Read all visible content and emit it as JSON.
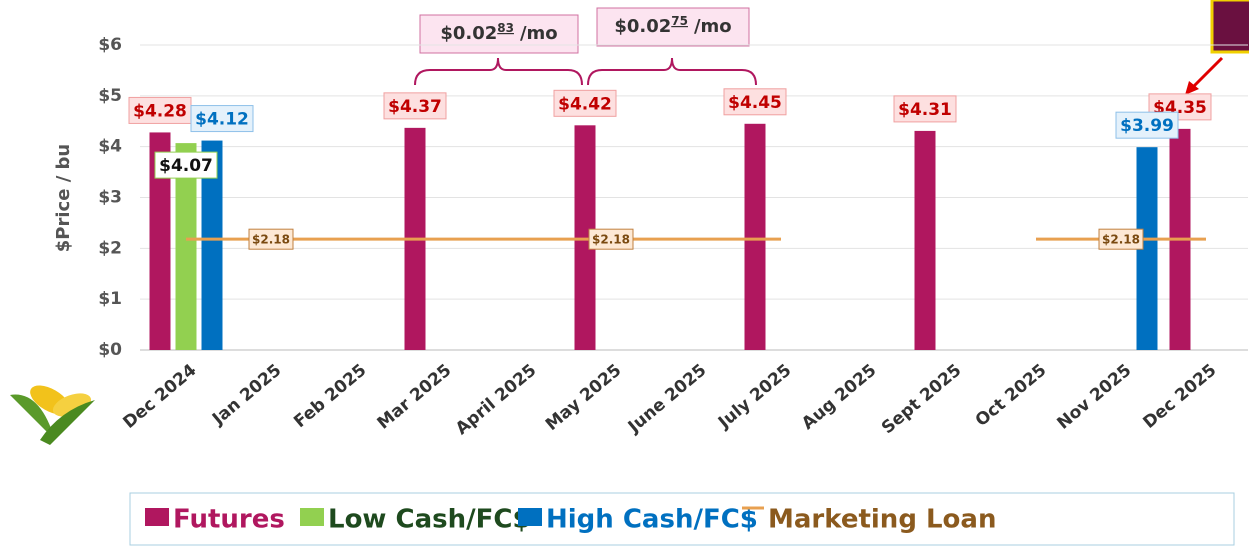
{
  "chart_data": {
    "type": "bar",
    "y_label": "$Price / bu",
    "categories": [
      "Dec 2024",
      "Jan 2025",
      "Feb 2025",
      "Mar 2025",
      "April 2025",
      "May 2025",
      "June 2025",
      "July 2025",
      "Aug 2025",
      "Sept 2025",
      "Oct 2025",
      "Nov 2025",
      "Dec 2025"
    ],
    "series": [
      {
        "name": "Futures",
        "color": "#b0175f",
        "values": [
          4.28,
          null,
          null,
          4.37,
          null,
          4.42,
          null,
          4.45,
          null,
          4.31,
          null,
          null,
          4.35
        ],
        "value_labels": [
          "$4.28",
          null,
          null,
          "$4.37",
          null,
          "$4.42",
          null,
          "$4.45",
          null,
          "$4.31",
          null,
          null,
          "$4.35"
        ]
      },
      {
        "name": "Low Cash/FC$",
        "color": "#92d050",
        "values": [
          4.07,
          null,
          null,
          null,
          null,
          null,
          null,
          null,
          null,
          null,
          null,
          null,
          null
        ],
        "value_labels": [
          "$4.07",
          null,
          null,
          null,
          null,
          null,
          null,
          null,
          null,
          null,
          null,
          null,
          null
        ]
      },
      {
        "name": "High Cash/FC$",
        "color": "#0070c0",
        "values": [
          4.12,
          null,
          null,
          null,
          null,
          null,
          null,
          null,
          null,
          null,
          null,
          3.99,
          null
        ],
        "value_labels": [
          "$4.12",
          null,
          null,
          null,
          null,
          null,
          null,
          null,
          null,
          null,
          null,
          "$3.99",
          null
        ]
      },
      {
        "name": "Marketing Loan",
        "type": "line",
        "color": "#e8a050",
        "values": [
          2.18,
          2.18,
          2.18,
          2.18,
          2.18,
          2.18,
          2.18,
          2.18,
          null,
          null,
          2.18,
          2.18,
          2.18
        ],
        "value_labels": [
          null,
          "$2.18",
          null,
          null,
          null,
          "$2.18",
          null,
          null,
          null,
          null,
          null,
          "$2.18",
          null
        ]
      }
    ],
    "ylim": [
      0,
      6
    ],
    "yticks": [
      {
        "value": 0,
        "label": "$0"
      },
      {
        "value": 1,
        "label": "$1"
      },
      {
        "value": 2,
        "label": "$2"
      },
      {
        "value": 3,
        "label": "$3"
      },
      {
        "value": 4,
        "label": "$4"
      },
      {
        "value": 5,
        "label": "$5"
      },
      {
        "value": 6,
        "label": "$6"
      }
    ],
    "grid": true,
    "legend": "bottom",
    "annotations": [
      {
        "text": "$0.02",
        "sup": "83",
        "unit": "/mo"
      },
      {
        "text": "$0.02",
        "sup": "75",
        "unit": "/mo"
      }
    ]
  }
}
